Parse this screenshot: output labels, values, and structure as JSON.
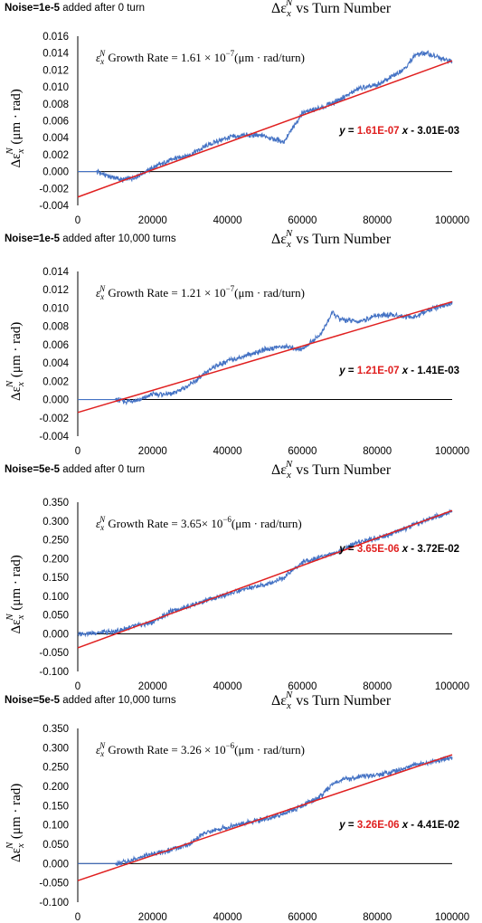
{
  "colors": {
    "data": "#4472C4",
    "fit": "#E02020",
    "coef": "#E02020",
    "axis": "#000000"
  },
  "chart_data": [
    {
      "type": "line",
      "title_main": "Δε",
      "title_sub": "x",
      "title_sup": "N",
      "title_rest": "  vs Turn Number",
      "noise_bold": "Noise=1e-5",
      "noise_rest": " added after 0 turn",
      "ylabel_main": "Δε",
      "ylabel_sub": "x",
      "ylabel_sup": "N",
      "ylabel_rest": " (μm · rad)",
      "growth_text_pre": " Growth Rate = 1.61 × 10",
      "growth_exp": "−7",
      "growth_text_post": "(μm · rad/turn)",
      "growth_sym": "ε",
      "growth_sub": "x",
      "growth_sup": "N",
      "eq_pre": "y",
      "eq_mid": " = ",
      "eq_coef": "1.61E-07",
      "eq_x": " x",
      "eq_post": " - 3.01E-03",
      "ylim": [
        -0.004,
        0.016
      ],
      "yticks": [
        "-0.004",
        "-0.002",
        "0.000",
        "0.002",
        "0.004",
        "0.006",
        "0.008",
        "0.010",
        "0.012",
        "0.014",
        "0.016"
      ],
      "xlim": [
        0,
        100000
      ],
      "xticks": [
        "0",
        "20000",
        "40000",
        "60000",
        "80000",
        "100000"
      ],
      "fit": {
        "slope": 1.61e-07,
        "intercept": -0.00301
      },
      "series": [
        {
          "x": [
            0,
            5000,
            8000,
            12000,
            15000,
            20000,
            25000,
            30000,
            35000,
            40000,
            45000,
            50000,
            55000,
            58000,
            60000,
            65000,
            70000,
            75000,
            80000,
            85000,
            88000,
            90000,
            93000,
            96000,
            100000
          ],
          "y": [
            0.0,
            0.0,
            -0.0005,
            -0.001,
            -0.0007,
            0.0004,
            0.0014,
            0.002,
            0.0032,
            0.004,
            0.0043,
            0.0042,
            0.0035,
            0.0055,
            0.007,
            0.0075,
            0.0085,
            0.0098,
            0.0102,
            0.0115,
            0.0125,
            0.0138,
            0.014,
            0.0135,
            0.013
          ]
        }
      ]
    },
    {
      "type": "line",
      "title_main": "Δε",
      "title_sub": "x",
      "title_sup": "N",
      "title_rest": "  vs Turn Number",
      "noise_bold": "Noise=1e-5",
      "noise_rest": " added after 10,000 turns",
      "ylabel_main": "Δε",
      "ylabel_sub": "x",
      "ylabel_sup": "N",
      "ylabel_rest": " (μm · rad)",
      "growth_text_pre": " Growth Rate = 1.21 × 10",
      "growth_exp": "−7",
      "growth_text_post": "(μm · rad/turn)",
      "growth_sym": "ε",
      "growth_sub": "x",
      "growth_sup": "N",
      "eq_pre": "y",
      "eq_mid": " = ",
      "eq_coef": "1.21E-07",
      "eq_x": " x",
      "eq_post": " - 1.41E-03",
      "ylim": [
        -0.004,
        0.014
      ],
      "yticks": [
        "-0.004",
        "-0.002",
        "0.000",
        "0.002",
        "0.004",
        "0.006",
        "0.008",
        "0.010",
        "0.012",
        "0.014"
      ],
      "xlim": [
        0,
        100000
      ],
      "xticks": [
        "0",
        "20000",
        "40000",
        "60000",
        "80000",
        "100000"
      ],
      "fit": {
        "slope": 1.21e-07,
        "intercept": -0.00141
      },
      "series": [
        {
          "x": [
            0,
            10000,
            13000,
            17000,
            20000,
            25000,
            30000,
            33000,
            36000,
            40000,
            45000,
            50000,
            55000,
            60000,
            65000,
            68000,
            70000,
            75000,
            80000,
            85000,
            90000,
            95000,
            100000
          ],
          "y": [
            0.0,
            0.0,
            -0.0002,
            0.0,
            0.0006,
            0.0006,
            0.0016,
            0.0025,
            0.0035,
            0.0042,
            0.0048,
            0.0055,
            0.0058,
            0.0055,
            0.0072,
            0.0095,
            0.0088,
            0.0085,
            0.0092,
            0.0092,
            0.009,
            0.01,
            0.0105
          ]
        }
      ]
    },
    {
      "type": "line",
      "title_main": "Δε",
      "title_sub": "x",
      "title_sup": "N",
      "title_rest": "  vs Turn Number",
      "noise_bold": "Noise=5e-5",
      "noise_rest": " added after 0 turn",
      "ylabel_main": "Δε",
      "ylabel_sub": "x",
      "ylabel_sup": "N",
      "ylabel_rest": " (μm · rad)",
      "growth_text_pre": " Growth Rate = 3.65× 10",
      "growth_exp": "−6",
      "growth_text_post": "(μm · rad/turn)",
      "growth_sym": "ε",
      "growth_sub": "x",
      "growth_sup": "N",
      "eq_pre": "y",
      "eq_mid": " = ",
      "eq_coef": "3.65E-06",
      "eq_x": " x",
      "eq_post": " - 3.72E-02",
      "ylim": [
        -0.1,
        0.35
      ],
      "yticks": [
        "-0.100",
        "-0.050",
        "0.000",
        "0.050",
        "0.100",
        "0.150",
        "0.200",
        "0.250",
        "0.300",
        "0.350"
      ],
      "xlim": [
        0,
        100000
      ],
      "xticks": [
        "0",
        "20000",
        "40000",
        "60000",
        "80000",
        "100000"
      ],
      "fit": {
        "slope": 3.65e-06,
        "intercept": -0.0372
      },
      "series": [
        {
          "x": [
            0,
            5000,
            10000,
            15000,
            20000,
            25000,
            30000,
            35000,
            40000,
            45000,
            50000,
            55000,
            60000,
            65000,
            70000,
            75000,
            80000,
            85000,
            90000,
            95000,
            100000
          ],
          "y": [
            0.0,
            0.003,
            0.005,
            0.02,
            0.03,
            0.06,
            0.075,
            0.09,
            0.105,
            0.12,
            0.13,
            0.15,
            0.19,
            0.205,
            0.22,
            0.245,
            0.255,
            0.27,
            0.29,
            0.31,
            0.325
          ]
        }
      ]
    },
    {
      "type": "line",
      "title_main": "Δε",
      "title_sub": "x",
      "title_sup": "N",
      "title_rest": "  vs Turn Number",
      "noise_bold": "Noise=5e-5",
      "noise_rest": " added after 10,000 turns",
      "ylabel_main": "Δε",
      "ylabel_sub": "x",
      "ylabel_sup": "N",
      "ylabel_rest": " (μm · rad)",
      "growth_text_pre": " Growth Rate = 3.26 × 10",
      "growth_exp": "−6",
      "growth_text_post": "(μm · rad/turn)",
      "growth_sym": "ε",
      "growth_sub": "x",
      "growth_sup": "N",
      "eq_pre": "y",
      "eq_mid": " = ",
      "eq_coef": "3.26E-06",
      "eq_x": " x",
      "eq_post": " - 4.41E-02",
      "ylim": [
        -0.1,
        0.35
      ],
      "yticks": [
        "-0.100",
        "-0.050",
        "0.000",
        "0.050",
        "0.100",
        "0.150",
        "0.200",
        "0.250",
        "0.300",
        "0.350"
      ],
      "xlim": [
        0,
        100000
      ],
      "xticks": [
        "0",
        "20000",
        "40000",
        "60000",
        "80000",
        "100000"
      ],
      "fit": {
        "slope": 3.26e-06,
        "intercept": -0.0441
      },
      "series": [
        {
          "x": [
            0,
            10000,
            13000,
            18000,
            25000,
            30000,
            33000,
            36000,
            40000,
            45000,
            50000,
            55000,
            60000,
            65000,
            68000,
            70000,
            75000,
            80000,
            85000,
            90000,
            95000,
            100000
          ],
          "y": [
            0.0,
            0.0,
            0.005,
            0.02,
            0.035,
            0.05,
            0.075,
            0.085,
            0.095,
            0.105,
            0.115,
            0.13,
            0.15,
            0.175,
            0.205,
            0.215,
            0.225,
            0.23,
            0.24,
            0.255,
            0.265,
            0.275
          ]
        }
      ]
    }
  ]
}
